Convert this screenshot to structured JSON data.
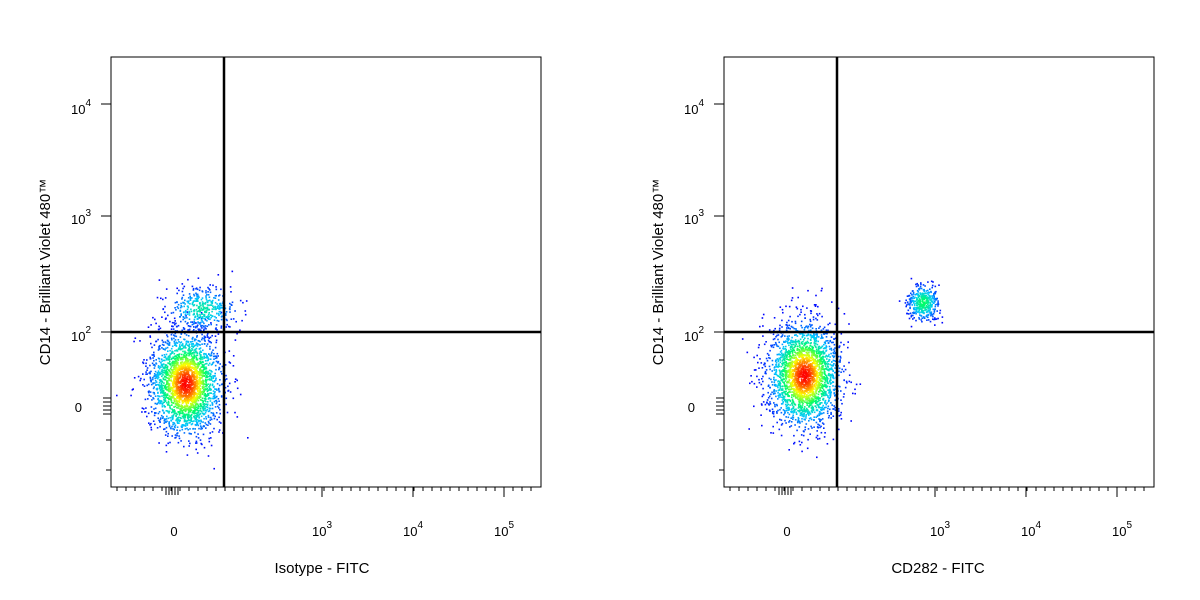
{
  "chart_data": [
    {
      "type": "scatter",
      "subtype": "flow-cytometry-density-dot-plot",
      "xlabel": "Isotype - FITC",
      "ylabel": "CD14 - Brilliant Violet 480™",
      "x_scale": "biexponential",
      "y_scale": "biexponential",
      "x_tick_labels": [
        "0",
        "10^3",
        "10^4",
        "10^5"
      ],
      "y_tick_labels": [
        "0",
        "10^2",
        "10^3",
        "10^4"
      ],
      "x_tick_values": [
        0,
        1000,
        10000,
        100000
      ],
      "y_tick_values": [
        0,
        100,
        1000,
        10000
      ],
      "quadrant_gate": {
        "x": 400,
        "y": 100
      },
      "color_scale": [
        "#0000ff",
        "#00c8ff",
        "#00ff64",
        "#ffff00",
        "#ff0000"
      ],
      "populations": [
        {
          "name": "",
          "x_center": 10,
          "y_center": 15,
          "x_spread": 0.38,
          "y_spread": 0.45,
          "count": 2600,
          "relative_density": 1.0
        },
        {
          "name": "",
          "x_center": 25,
          "y_center": 300,
          "x_spread": 0.4,
          "y_spread": 0.2,
          "count": 420,
          "relative_density": 0.4
        }
      ]
    },
    {
      "type": "scatter",
      "subtype": "flow-cytometry-density-dot-plot",
      "xlabel": "CD282 - FITC",
      "ylabel": "CD14 - Brilliant Violet 480™",
      "x_scale": "biexponential",
      "y_scale": "biexponential",
      "x_tick_labels": [
        "0",
        "10^3",
        "10^4",
        "10^5"
      ],
      "y_tick_labels": [
        "0",
        "10^2",
        "10^3",
        "10^4"
      ],
      "x_tick_values": [
        0,
        1000,
        10000,
        100000
      ],
      "y_tick_values": [
        0,
        100,
        1000,
        10000
      ],
      "quadrant_gate": {
        "x": 400,
        "y": 100
      },
      "color_scale": [
        "#0000ff",
        "#00c8ff",
        "#00ff64",
        "#ffff00",
        "#ff0000"
      ],
      "populations": [
        {
          "name": "",
          "x_center": 15,
          "y_center": 20,
          "x_spread": 0.38,
          "y_spread": 0.45,
          "count": 2600,
          "relative_density": 1.0
        },
        {
          "name": "",
          "x_center": 650,
          "y_center": 400,
          "x_spread": 0.18,
          "y_spread": 0.17,
          "count": 380,
          "relative_density": 0.5
        }
      ]
    }
  ]
}
